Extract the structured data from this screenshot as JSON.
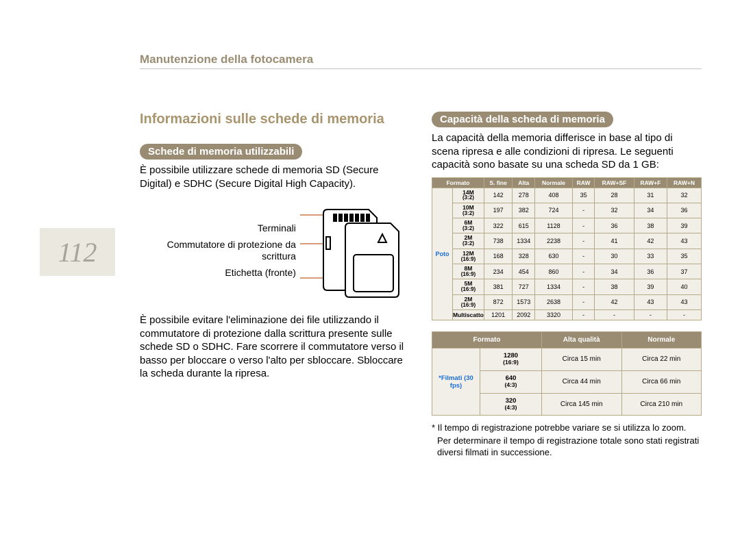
{
  "page": {
    "header": "Manutenzione della fotocamera",
    "number": "112"
  },
  "left": {
    "title": "Informazioni sulle schede di memoria",
    "pill": "Schede di memoria utilizzabili",
    "intro": "È possibile utilizzare schede di memoria SD (Secure Digital) e SDHC (Secure Digital High Capacity).",
    "diagram": {
      "label_terminals": "Terminali",
      "label_switch": "Commutatore di protezione da scrittura",
      "label_front": "Etichetta (fronte)",
      "line_color": "#c97a4a",
      "outline_color": "#000000"
    },
    "para2": "È possibile evitare l'eliminazione dei file utilizzando il commutatore di protezione dalla scrittura presente sulle schede SD o SDHC. Fare scorrere il commutatore verso il basso per bloccare o verso l'alto per sbloccare. Sbloccare la scheda durante la ripresa."
  },
  "right": {
    "pill": "Capacità della scheda di memoria",
    "intro": "La capacità della memoria differisce in base al tipo di scena ripresa e alle condizioni di ripresa. Le seguenti capacità sono basate su una scheda SD da 1 GB:",
    "capacity": {
      "header_bg": "#9a8c73",
      "header_fg": "#ffffff",
      "cell_bg": "#f2efe8",
      "fmt_bg": "#e8e4d8",
      "border_color": "#b5a988",
      "columns": [
        "Formato",
        "S. fine",
        "Alta",
        "Normale",
        "RAW",
        "RAW+SF",
        "RAW+F",
        "RAW+N"
      ],
      "category_label": "Poto",
      "category_color": "#1b6fd6",
      "formats": [
        {
          "name": "14M",
          "ratio": "(3:2)"
        },
        {
          "name": "10M",
          "ratio": "(3:2)"
        },
        {
          "name": "6M",
          "ratio": "(3:2)"
        },
        {
          "name": "2M",
          "ratio": "(3:2)"
        },
        {
          "name": "12M",
          "ratio": "(16:9)"
        },
        {
          "name": "8M",
          "ratio": "(16:9)"
        },
        {
          "name": "5M",
          "ratio": "(16:9)"
        },
        {
          "name": "2M",
          "ratio": "(16:9)"
        },
        {
          "name": "Multiscatto",
          "ratio": ""
        }
      ],
      "rows": [
        [
          "142",
          "278",
          "408",
          "35",
          "28",
          "31",
          "32"
        ],
        [
          "197",
          "382",
          "724",
          "-",
          "32",
          "34",
          "36"
        ],
        [
          "322",
          "615",
          "1128",
          "-",
          "36",
          "38",
          "39"
        ],
        [
          "738",
          "1334",
          "2238",
          "-",
          "41",
          "42",
          "43"
        ],
        [
          "168",
          "328",
          "630",
          "-",
          "30",
          "33",
          "35"
        ],
        [
          "234",
          "454",
          "860",
          "-",
          "34",
          "36",
          "37"
        ],
        [
          "381",
          "727",
          "1334",
          "-",
          "38",
          "39",
          "40"
        ],
        [
          "872",
          "1573",
          "2638",
          "-",
          "42",
          "43",
          "43"
        ],
        [
          "1201",
          "2092",
          "3320",
          "-",
          "-",
          "-",
          "-"
        ]
      ]
    },
    "video": {
      "columns": [
        "Formato",
        "Alta qualità",
        "Normale"
      ],
      "category_label": "*Filmati (30 fps)",
      "formats": [
        {
          "name": "1280",
          "ratio": "(16:9)"
        },
        {
          "name": "640",
          "ratio": "(4:3)"
        },
        {
          "name": "320",
          "ratio": "(4:3)"
        }
      ],
      "rows": [
        [
          "Circa 15 min",
          "Circa 22 min"
        ],
        [
          "Circa 44 min",
          "Circa 66 min"
        ],
        [
          "Circa 145 min",
          "Circa 210 min"
        ]
      ]
    },
    "footnote1": "* Il tempo di registrazione potrebbe variare se si utilizza lo zoom.",
    "footnote2": "Per determinare il tempo di registrazione totale sono stati registrati diversi filmati in successione."
  }
}
